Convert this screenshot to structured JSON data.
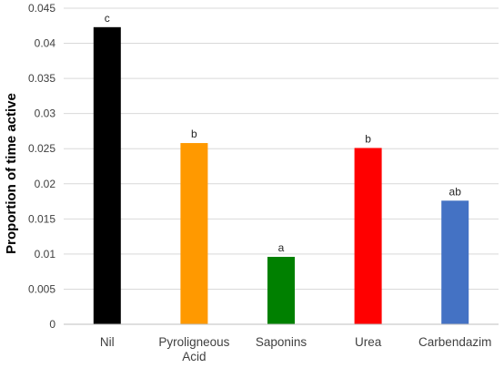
{
  "chart_data": {
    "type": "bar",
    "title": "",
    "xlabel": "",
    "ylabel": "Proportion of time active",
    "ylim": [
      0,
      0.045
    ],
    "yticks": [
      "0",
      "0.005",
      "0.01",
      "0.015",
      "0.02",
      "0.025",
      "0.03",
      "0.035",
      "0.04",
      "0.045"
    ],
    "grid": true,
    "legend": "none",
    "categories": [
      {
        "lines": [
          "Nil"
        ]
      },
      {
        "lines": [
          "Pyroligneous",
          "Acid"
        ]
      },
      {
        "lines": [
          "Saponins"
        ]
      },
      {
        "lines": [
          "Urea"
        ]
      },
      {
        "lines": [
          "Carbendazim"
        ]
      }
    ],
    "values": [
      0.0423,
      0.0258,
      0.0096,
      0.0251,
      0.0176
    ],
    "data_labels": [
      "c",
      "b",
      "a",
      "b",
      "ab"
    ],
    "colors": [
      "#000000",
      "#ff9900",
      "#008000",
      "#ff0000",
      "#4472c4"
    ]
  }
}
